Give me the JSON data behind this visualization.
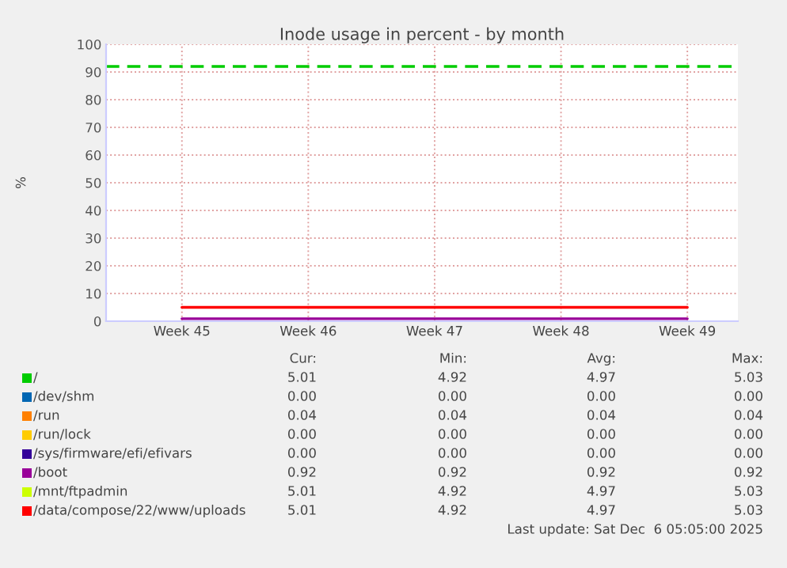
{
  "chart_data": {
    "type": "line",
    "title": "Inode usage in percent - by month",
    "ylabel": "%",
    "categories": [
      "Week 45",
      "Week 46",
      "Week 47",
      "Week 48",
      "Week 49"
    ],
    "series": [
      {
        "name": "/",
        "color": "#00cc00",
        "values": [
          null,
          null,
          null,
          null,
          null
        ]
      },
      {
        "name": "/dev/shm",
        "color": "#0066b3",
        "values": [
          null,
          null,
          null,
          null,
          null
        ]
      },
      {
        "name": "/run",
        "color": "#ff8000",
        "values": [
          null,
          null,
          null,
          null,
          null
        ]
      },
      {
        "name": "/run/lock",
        "color": "#ffcc00",
        "values": [
          null,
          null,
          null,
          null,
          null
        ]
      },
      {
        "name": "/sys/firmware/efi/efivars",
        "color": "#330099",
        "values": [
          null,
          null,
          null,
          null,
          null
        ]
      },
      {
        "name": "/boot",
        "color": "#990099",
        "values": [
          0.9,
          0.9,
          0.9,
          0.9,
          0.9
        ]
      },
      {
        "name": "/mnt/ftpadmin",
        "color": "#ccff00",
        "values": [
          null,
          null,
          null,
          null,
          null
        ]
      },
      {
        "name": "/data/compose/22/www/uploads",
        "color": "#ff0000",
        "values": [
          5.0,
          5.0,
          5.0,
          5.0,
          5.0
        ]
      }
    ],
    "ylim": [
      0,
      100
    ],
    "yticks": [
      0,
      10,
      20,
      30,
      40,
      50,
      60,
      70,
      80,
      90,
      100
    ],
    "ref_lines": [
      {
        "axis": "y",
        "value": 92,
        "color": "#00cc00",
        "line_style": "dashed"
      }
    ],
    "grid": true,
    "legend": "bottom",
    "marker": "none",
    "line_style": "solid",
    "annotations": [
      "Cur:",
      "Min:",
      "Avg:",
      "Max:",
      "5.01",
      "4.92",
      "4.97",
      "5.03",
      "0.00",
      "0.00",
      "0.00",
      "0.00",
      "0.04",
      "0.04",
      "0.04",
      "0.04",
      "0.00",
      "0.00",
      "0.00",
      "0.00",
      "0.00",
      "0.00",
      "0.00",
      "0.00",
      "0.92",
      "0.92",
      "0.92",
      "0.92",
      "5.01",
      "4.92",
      "4.97",
      "5.03",
      "5.01",
      "4.92",
      "4.97",
      "5.03",
      "Last update: Sat Dec  6 05:05:00 2025"
    ]
  }
}
